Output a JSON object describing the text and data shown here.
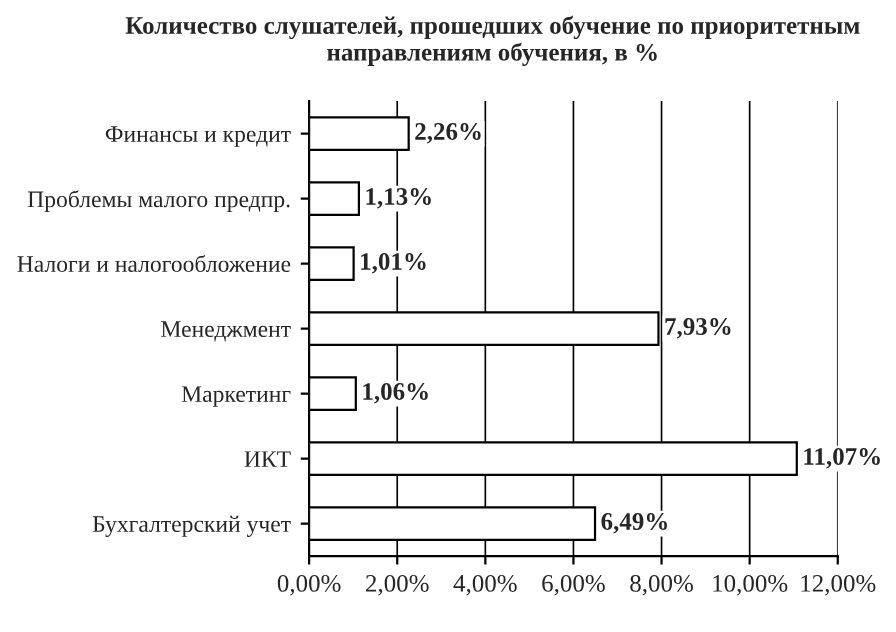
{
  "chart_data": {
    "type": "bar",
    "orientation": "horizontal",
    "title": "Количество слушателей, прошедших обучение по приоритетным направлениям обучения, в %",
    "categories": [
      "Финансы и кредит",
      "Проблемы малого предпр.",
      "Налоги и налогообложение",
      "Менеджмент",
      "Маркетинг",
      "ИКТ",
      "Бухгалтерский учет"
    ],
    "values": [
      2.26,
      1.13,
      1.01,
      7.93,
      1.06,
      11.07,
      6.49
    ],
    "value_labels": [
      "2,26%",
      "1,13%",
      "1,01%",
      "7,93%",
      "1,06%",
      "11,07%",
      "6,49%"
    ],
    "color": "#ffffff",
    "xlim": [
      0,
      12
    ],
    "xticks": [
      {
        "value": 0,
        "label": "0,00%"
      },
      {
        "value": 2,
        "label": "2,00%"
      },
      {
        "value": 4,
        "label": "4,00%"
      },
      {
        "value": 6,
        "label": "6,00%"
      },
      {
        "value": 8,
        "label": "8,00%"
      },
      {
        "value": 10,
        "label": "10,00%"
      },
      {
        "value": 12,
        "label": "12,00%"
      }
    ],
    "grid": "x"
  }
}
